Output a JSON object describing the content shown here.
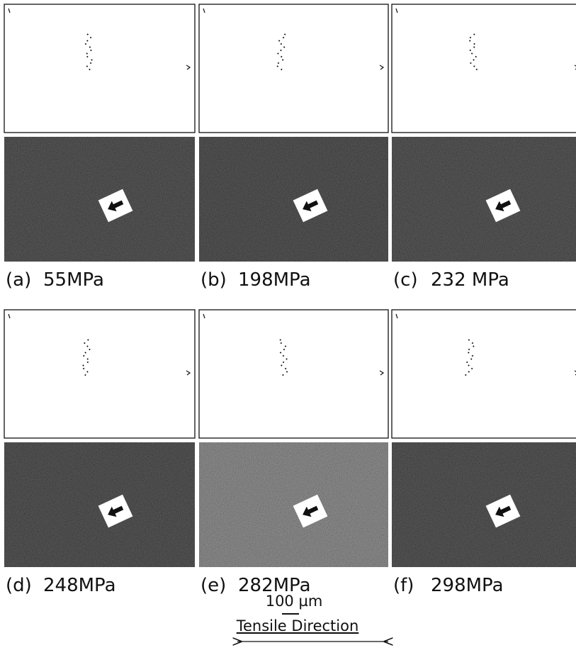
{
  "panels": [
    {
      "label": "(a)",
      "stress": "55MPa"
    },
    {
      "label": "(b)",
      "stress": "198MPa"
    },
    {
      "label": "(c)",
      "stress": "232 MPa"
    },
    {
      "label": "(d)",
      "stress": "248MPa"
    },
    {
      "label": "(e)",
      "stress": "282MPa"
    },
    {
      "label": "(f)",
      "stress": "298MPa"
    }
  ],
  "scale_bar": "100 µm",
  "direction": "Tensile Direction"
}
